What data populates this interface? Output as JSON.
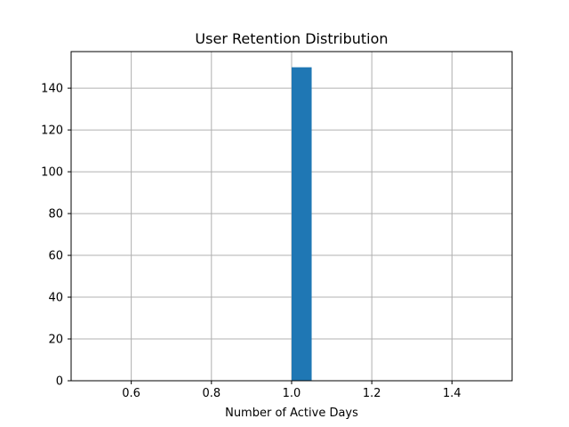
{
  "chart_data": {
    "type": "bar",
    "title": "User Retention Distribution",
    "xlabel": "Number of Active Days",
    "ylabel": "",
    "xlim": [
      0.45,
      1.55
    ],
    "ylim": [
      0,
      157.5
    ],
    "x_ticks": [
      0.6,
      0.8,
      1.0,
      1.2,
      1.4
    ],
    "x_tick_labels": [
      "0.6",
      "0.8",
      "1.0",
      "1.2",
      "1.4"
    ],
    "y_ticks": [
      0,
      20,
      40,
      60,
      80,
      100,
      120,
      140
    ],
    "y_tick_labels": [
      "0",
      "20",
      "40",
      "60",
      "80",
      "100",
      "120",
      "140"
    ],
    "grid": true,
    "legend": "none",
    "bar_color": "#1f77b4",
    "bins": [
      {
        "x_start": 1.0,
        "x_end": 1.05,
        "value": 150
      }
    ]
  }
}
